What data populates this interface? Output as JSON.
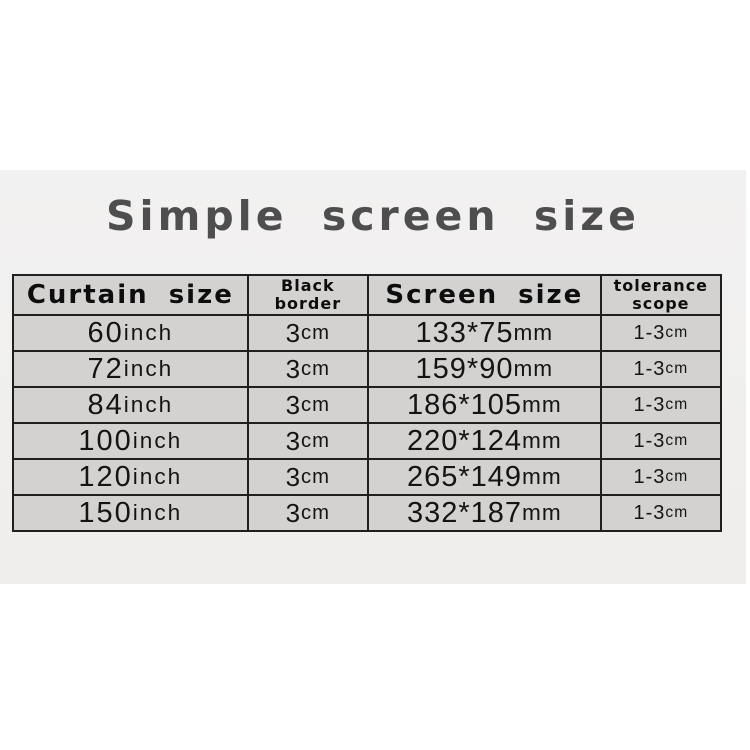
{
  "chart_data": {
    "type": "table",
    "title": "Simple screen size",
    "columns": [
      "Curtain size",
      "Black border",
      "Screen size",
      "tolerance scope"
    ],
    "rows": [
      [
        "60inch",
        "3cm",
        "133*75mm",
        "1-3cm"
      ],
      [
        "72inch",
        "3cm",
        "159*90mm",
        "1-3cm"
      ],
      [
        "84inch",
        "3cm",
        "186*105mm",
        "1-3cm"
      ],
      [
        "100inch",
        "3cm",
        "220*124mm",
        "1-3cm"
      ],
      [
        "120inch",
        "3cm",
        "265*149mm",
        "1-3cm"
      ],
      [
        "150inch",
        "3cm",
        "332*187mm",
        "1-3cm"
      ]
    ]
  },
  "table": {
    "columns": [
      {
        "label": "Curtain size",
        "lines": [
          "Curtain size"
        ]
      },
      {
        "label": "Black border",
        "lines": [
          "Black",
          "border"
        ]
      },
      {
        "label": "Screen size",
        "lines": [
          "Screen size"
        ]
      },
      {
        "label": "tolerance scope",
        "lines": [
          "tolerance",
          "scope"
        ]
      }
    ],
    "rows": [
      {
        "cells": [
          {
            "value": "60",
            "unit": "inch"
          },
          {
            "value": "3",
            "unit": "cm"
          },
          {
            "value": "133*75",
            "unit": "mm"
          },
          {
            "value": "1-3",
            "unit": "cm"
          }
        ]
      },
      {
        "cells": [
          {
            "value": "72",
            "unit": "inch"
          },
          {
            "value": "3",
            "unit": "cm"
          },
          {
            "value": "159*90",
            "unit": "mm"
          },
          {
            "value": "1-3",
            "unit": "cm"
          }
        ]
      },
      {
        "cells": [
          {
            "value": "84",
            "unit": "inch"
          },
          {
            "value": "3",
            "unit": "cm"
          },
          {
            "value": "186*105",
            "unit": "mm"
          },
          {
            "value": "1-3",
            "unit": "cm"
          }
        ]
      },
      {
        "cells": [
          {
            "value": "100",
            "unit": "inch"
          },
          {
            "value": "3",
            "unit": "cm"
          },
          {
            "value": "220*124",
            "unit": "mm"
          },
          {
            "value": "1-3",
            "unit": "cm"
          }
        ]
      },
      {
        "cells": [
          {
            "value": "120",
            "unit": "inch"
          },
          {
            "value": "3",
            "unit": "cm"
          },
          {
            "value": "265*149",
            "unit": "mm"
          },
          {
            "value": "1-3",
            "unit": "cm"
          }
        ]
      },
      {
        "cells": [
          {
            "value": "150",
            "unit": "inch"
          },
          {
            "value": "3",
            "unit": "cm"
          },
          {
            "value": "332*187",
            "unit": "mm"
          },
          {
            "value": "1-3",
            "unit": "cm"
          }
        ]
      }
    ]
  },
  "colors": {
    "page_background": "#ffffff",
    "photo_background": "#f0efee",
    "cell_background": "#d3d2d1",
    "table_border": "#1f1f1f",
    "title_text": "#4e4e4e",
    "cell_text": "#141414"
  }
}
